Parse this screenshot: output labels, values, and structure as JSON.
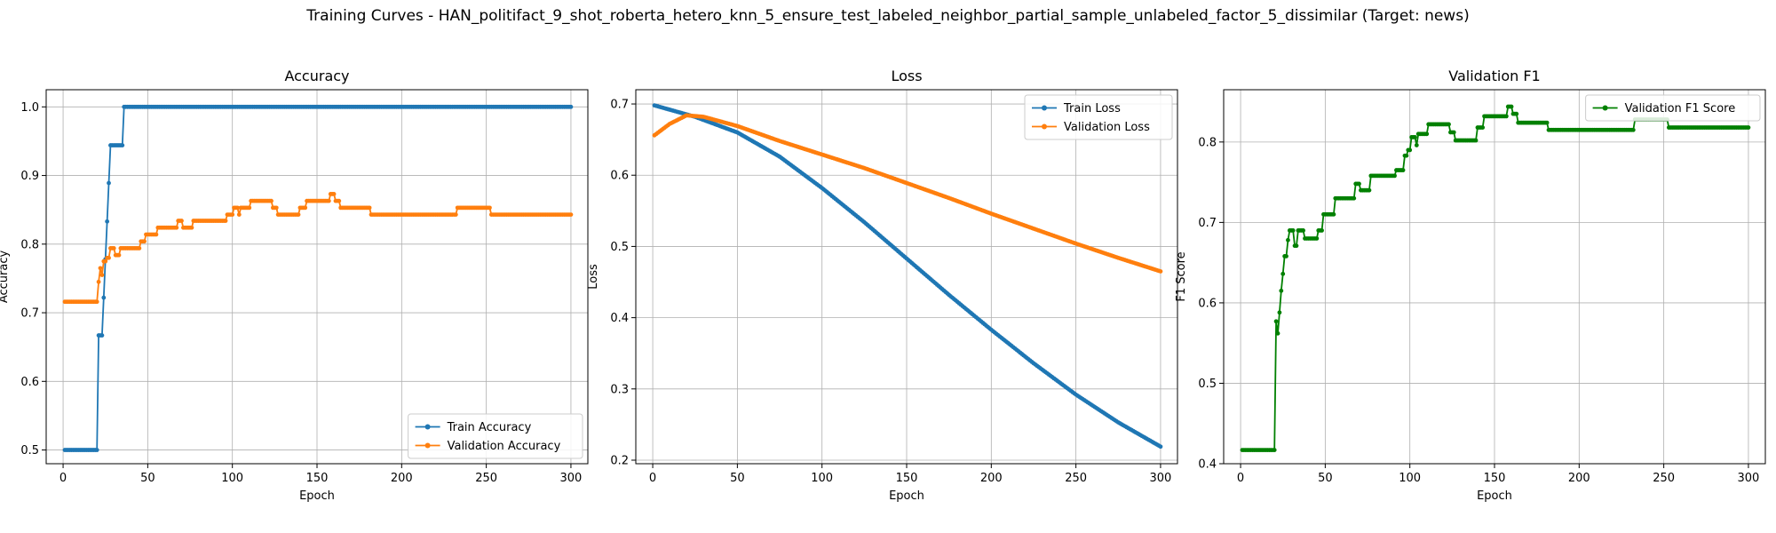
{
  "suptitle": "Training Curves - HAN_politifact_9_shot_roberta_hetero_knn_5_ensure_test_labeled_neighbor_partial_sample_unlabeled_factor_5_dissimilar (Target: news)",
  "colors": {
    "blue": "#1f77b4",
    "orange": "#ff7f0e",
    "green": "#008000"
  },
  "chart_data": [
    {
      "type": "line",
      "title": "Accuracy",
      "xlabel": "Epoch",
      "ylabel": "Accuracy",
      "xlim": [
        -10,
        310
      ],
      "ylim": [
        0.48,
        1.025
      ],
      "xticks": [
        0,
        50,
        100,
        150,
        200,
        250,
        300
      ],
      "yticks": [
        0.5,
        0.6,
        0.7,
        0.8,
        0.9,
        1.0
      ],
      "ytick_labels": [
        "0.5",
        "0.6",
        "0.7",
        "0.8",
        "0.9",
        "1.0"
      ],
      "grid": true,
      "legend_loc": "lower-right",
      "x_range": [
        1,
        300
      ],
      "series": [
        {
          "name": "Train Accuracy",
          "color": "#1f77b4",
          "steps": [
            [
              1,
              0.5
            ],
            [
              20,
              0.5
            ],
            [
              21,
              0.667
            ],
            [
              23,
              0.667
            ],
            [
              24,
              0.722
            ],
            [
              25,
              0.778
            ],
            [
              26,
              0.833
            ],
            [
              27,
              0.889
            ],
            [
              28,
              0.944
            ],
            [
              35,
              0.944
            ],
            [
              36,
              1.0
            ],
            [
              300,
              1.0
            ]
          ]
        },
        {
          "name": "Validation Accuracy",
          "color": "#ff7f0e",
          "steps": [
            [
              1,
              0.716
            ],
            [
              20,
              0.716
            ],
            [
              21,
              0.745
            ],
            [
              22,
              0.765
            ],
            [
              23,
              0.755
            ],
            [
              24,
              0.775
            ],
            [
              26,
              0.78
            ],
            [
              28,
              0.794
            ],
            [
              31,
              0.784
            ],
            [
              34,
              0.794
            ],
            [
              46,
              0.804
            ],
            [
              49,
              0.814
            ],
            [
              56,
              0.824
            ],
            [
              68,
              0.834
            ],
            [
              71,
              0.824
            ],
            [
              77,
              0.834
            ],
            [
              97,
              0.843
            ],
            [
              101,
              0.853
            ],
            [
              104,
              0.843
            ],
            [
              105,
              0.853
            ],
            [
              111,
              0.863
            ],
            [
              124,
              0.853
            ],
            [
              127,
              0.843
            ],
            [
              140,
              0.853
            ],
            [
              144,
              0.863
            ],
            [
              158,
              0.873
            ],
            [
              161,
              0.863
            ],
            [
              164,
              0.853
            ],
            [
              182,
              0.843
            ],
            [
              233,
              0.853
            ],
            [
              253,
              0.843
            ],
            [
              300,
              0.843
            ]
          ]
        }
      ]
    },
    {
      "type": "line",
      "title": "Loss",
      "xlabel": "Epoch",
      "ylabel": "Loss",
      "xlim": [
        -10,
        310
      ],
      "ylim": [
        0.195,
        0.72
      ],
      "xticks": [
        0,
        50,
        100,
        150,
        200,
        250,
        300
      ],
      "yticks": [
        0.2,
        0.3,
        0.4,
        0.5,
        0.6,
        0.7
      ],
      "ytick_labels": [
        "0.2",
        "0.3",
        "0.4",
        "0.5",
        "0.6",
        "0.7"
      ],
      "grid": true,
      "legend_loc": "upper-right",
      "x_range": [
        1,
        300
      ],
      "series": [
        {
          "name": "Train Loss",
          "color": "#1f77b4",
          "knots": [
            [
              1,
              0.698
            ],
            [
              25,
              0.682
            ],
            [
              50,
              0.66
            ],
            [
              75,
              0.626
            ],
            [
              100,
              0.582
            ],
            [
              125,
              0.534
            ],
            [
              150,
              0.483
            ],
            [
              175,
              0.432
            ],
            [
              200,
              0.383
            ],
            [
              225,
              0.336
            ],
            [
              250,
              0.292
            ],
            [
              275,
              0.253
            ],
            [
              300,
              0.219
            ]
          ]
        },
        {
          "name": "Validation Loss",
          "color": "#ff7f0e",
          "knots": [
            [
              1,
              0.656
            ],
            [
              10,
              0.672
            ],
            [
              20,
              0.684
            ],
            [
              30,
              0.682
            ],
            [
              50,
              0.669
            ],
            [
              75,
              0.648
            ],
            [
              100,
              0.629
            ],
            [
              125,
              0.61
            ],
            [
              150,
              0.589
            ],
            [
              175,
              0.568
            ],
            [
              200,
              0.546
            ],
            [
              225,
              0.525
            ],
            [
              250,
              0.504
            ],
            [
              275,
              0.484
            ],
            [
              300,
              0.465
            ]
          ]
        }
      ]
    },
    {
      "type": "line",
      "title": "Validation F1",
      "xlabel": "Epoch",
      "ylabel": "F1 Score",
      "xlim": [
        -10,
        310
      ],
      "ylim": [
        0.4,
        0.865
      ],
      "xticks": [
        0,
        50,
        100,
        150,
        200,
        250,
        300
      ],
      "yticks": [
        0.4,
        0.5,
        0.6,
        0.7,
        0.8
      ],
      "ytick_labels": [
        "0.4",
        "0.5",
        "0.6",
        "0.7",
        "0.8"
      ],
      "grid": true,
      "legend_loc": "upper-right",
      "x_range": [
        1,
        300
      ],
      "series": [
        {
          "name": "Validation F1 Score",
          "color": "#008000",
          "steps": [
            [
              1,
              0.417
            ],
            [
              20,
              0.417
            ],
            [
              21,
              0.577
            ],
            [
              22,
              0.562
            ],
            [
              23,
              0.588
            ],
            [
              24,
              0.615
            ],
            [
              25,
              0.636
            ],
            [
              26,
              0.658
            ],
            [
              28,
              0.678
            ],
            [
              29,
              0.69
            ],
            [
              32,
              0.671
            ],
            [
              34,
              0.69
            ],
            [
              38,
              0.68
            ],
            [
              46,
              0.69
            ],
            [
              49,
              0.71
            ],
            [
              56,
              0.73
            ],
            [
              68,
              0.748
            ],
            [
              71,
              0.74
            ],
            [
              77,
              0.758
            ],
            [
              92,
              0.765
            ],
            [
              97,
              0.783
            ],
            [
              99,
              0.79
            ],
            [
              101,
              0.806
            ],
            [
              104,
              0.796
            ],
            [
              105,
              0.81
            ],
            [
              111,
              0.822
            ],
            [
              124,
              0.812
            ],
            [
              127,
              0.802
            ],
            [
              140,
              0.818
            ],
            [
              144,
              0.832
            ],
            [
              158,
              0.844
            ],
            [
              161,
              0.835
            ],
            [
              164,
              0.824
            ],
            [
              182,
              0.815
            ],
            [
              233,
              0.828
            ],
            [
              253,
              0.818
            ],
            [
              300,
              0.818
            ]
          ]
        }
      ]
    }
  ]
}
